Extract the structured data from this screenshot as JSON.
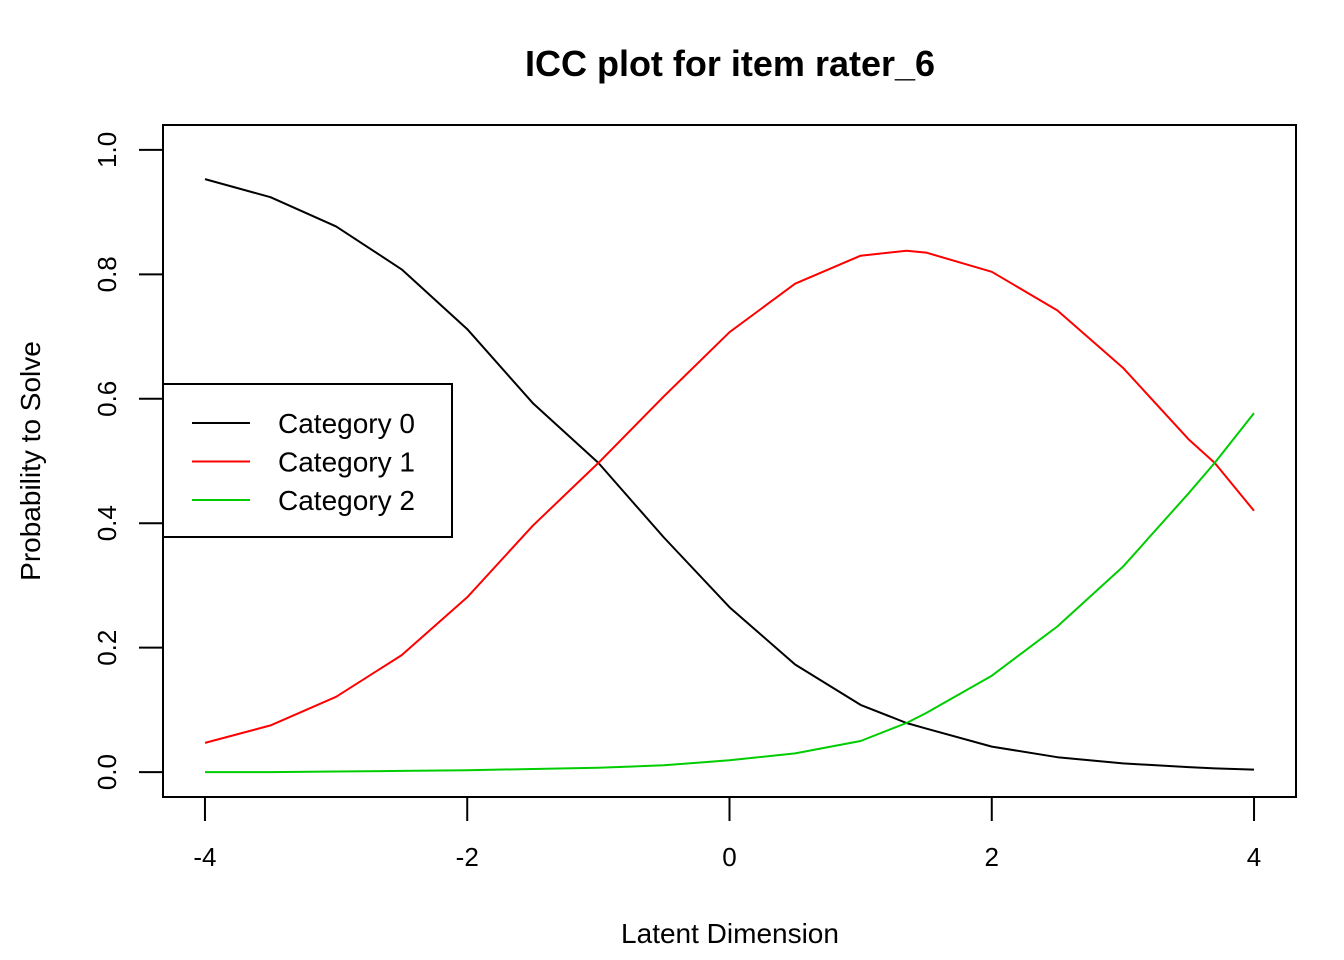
{
  "chart_data": {
    "type": "line",
    "title": "ICC plot for item rater_6",
    "xlabel": "Latent Dimension",
    "ylabel": "Probability to Solve",
    "xlim": [
      -4.32,
      4.32
    ],
    "ylim": [
      -0.04,
      1.04
    ],
    "xticks": [
      -4,
      -2,
      0,
      2,
      4
    ],
    "xtick_labels": [
      "-4",
      "-2",
      "0",
      "2",
      "4"
    ],
    "yticks": [
      0.0,
      0.2,
      0.4,
      0.6,
      0.8,
      1.0
    ],
    "ytick_labels": [
      "0.0",
      "0.2",
      "0.4",
      "0.6",
      "0.8",
      "1.0"
    ],
    "grid": false,
    "legend_position": "left",
    "x": [
      -4.0,
      -3.5,
      -3.0,
      -2.5,
      -2.0,
      -1.5,
      -1.0,
      -0.5,
      0.0,
      0.5,
      1.0,
      1.35,
      1.5,
      2.0,
      2.5,
      3.0,
      3.5,
      3.7,
      4.0
    ],
    "series": [
      {
        "name": "Category 0",
        "color": "#000000",
        "values": [
          0.953,
          0.924,
          0.877,
          0.808,
          0.712,
          0.593,
          0.497,
          0.377,
          0.265,
          0.173,
          0.108,
          0.079,
          0.07,
          0.041,
          0.024,
          0.014,
          0.008,
          0.006,
          0.004
        ]
      },
      {
        "name": "Category 1",
        "color": "#ff0000",
        "values": [
          0.047,
          0.075,
          0.121,
          0.188,
          0.281,
          0.396,
          0.497,
          0.604,
          0.707,
          0.785,
          0.83,
          0.838,
          0.835,
          0.804,
          0.742,
          0.65,
          0.535,
          0.497,
          0.42
        ]
      },
      {
        "name": "Category 2",
        "color": "#00cd00",
        "values": [
          0.0,
          0.0,
          0.001,
          0.002,
          0.003,
          0.005,
          0.007,
          0.011,
          0.019,
          0.03,
          0.05,
          0.079,
          0.095,
          0.155,
          0.234,
          0.33,
          0.448,
          0.497,
          0.577
        ]
      }
    ]
  }
}
